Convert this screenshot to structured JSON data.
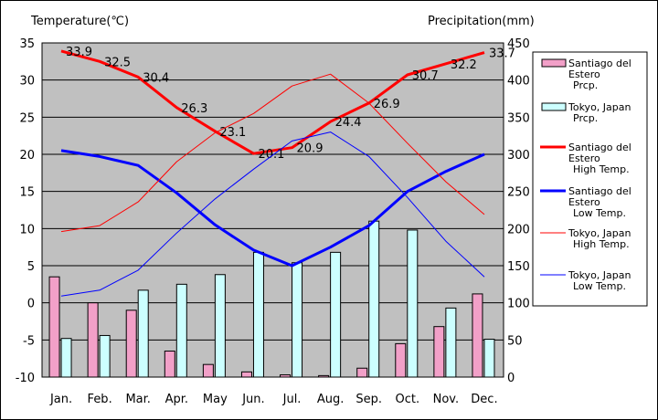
{
  "chart_data": {
    "type": "bar+line",
    "categories": [
      "Jan.",
      "Feb.",
      "Mar.",
      "Apr.",
      "May",
      "Jun.",
      "Jul.",
      "Aug.",
      "Sep.",
      "Oct.",
      "Nov.",
      "Dec."
    ],
    "ylabel_left": "Temperature(℃)",
    "ylabel_right": "Precipitation(mm)",
    "ylim_left": [
      -10,
      35
    ],
    "yticks_left": [
      -10,
      -5,
      0,
      5,
      10,
      15,
      20,
      25,
      30,
      35
    ],
    "ylim_right": [
      0,
      450
    ],
    "yticks_right": [
      0,
      50,
      100,
      150,
      200,
      250,
      300,
      350,
      400,
      450
    ],
    "grid": true,
    "legend_position": "right",
    "bar_series": [
      {
        "name_lines": [
          "Santiago del",
          "Estero",
          "Prcp."
        ],
        "color": "#f2a0c8",
        "values": [
          135,
          100,
          90,
          35,
          17,
          7,
          3,
          2,
          12,
          45,
          68,
          112
        ]
      },
      {
        "name_lines": [
          "Tokyo, Japan",
          "Prcp."
        ],
        "color": "#ccffff",
        "values": [
          52,
          56,
          117,
          125,
          138,
          168,
          154,
          168,
          210,
          198,
          93,
          51
        ]
      }
    ],
    "line_series": [
      {
        "name_lines": [
          "Santiago del",
          "Estero",
          "High Temp."
        ],
        "color": "#ff0000",
        "width": "thick",
        "values": [
          33.9,
          32.5,
          30.4,
          26.3,
          23.1,
          20.1,
          20.9,
          24.4,
          26.9,
          30.7,
          32.2,
          33.7
        ],
        "labels": [
          "33.9",
          "32.5",
          "30.4",
          "26.3",
          "23.1",
          "20.1",
          "20.9",
          "24.4",
          "26.9",
          "30.7",
          "32.2",
          "33.7"
        ]
      },
      {
        "name_lines": [
          "Santiago del",
          "Estero",
          "Low Temp."
        ],
        "color": "#0000ff",
        "width": "thick",
        "values": [
          20.5,
          19.7,
          18.5,
          14.8,
          10.5,
          7.1,
          5.0,
          7.5,
          10.4,
          15.0,
          17.7,
          20.0
        ]
      },
      {
        "name_lines": [
          "Tokyo, Japan",
          "High Temp."
        ],
        "color": "#ff0000",
        "width": "thin",
        "values": [
          9.6,
          10.4,
          13.6,
          19.0,
          22.9,
          25.5,
          29.2,
          30.8,
          26.9,
          21.5,
          16.3,
          11.9
        ]
      },
      {
        "name_lines": [
          "Tokyo, Japan",
          "Low Temp."
        ],
        "color": "#0000ff",
        "width": "thin",
        "values": [
          0.9,
          1.7,
          4.4,
          9.4,
          14.0,
          18.0,
          21.8,
          23.0,
          19.7,
          14.2,
          8.3,
          3.5
        ]
      }
    ]
  }
}
